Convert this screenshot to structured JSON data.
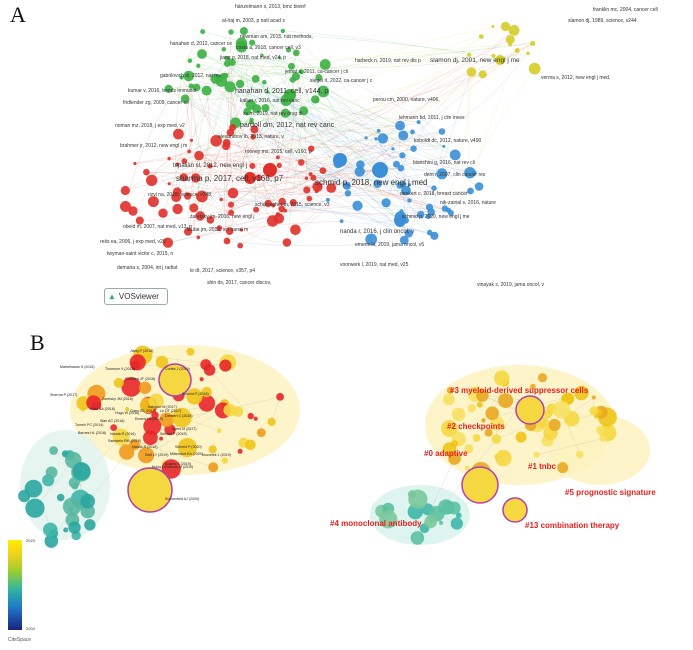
{
  "panels": {
    "a_label": "A",
    "b_label": "B"
  },
  "vosviewer_logo": {
    "text": "VOSviewer",
    "icon": "vosviewer-logo-icon"
  },
  "colors": {
    "red": "#e0302a",
    "green": "#3cb043",
    "blue": "#3a8fd6",
    "yellow": "#d6cc2a",
    "cluster_label": "#e4201e",
    "teal": "#3fb6a8"
  },
  "network_a": {
    "labels": [
      {
        "text": "hänzelmann s, 2013, bmc bioinf",
        "color": "green"
      },
      {
        "text": "al-haj m, 2003, p natl acad s",
        "color": "green"
      },
      {
        "text": "newman am, 2015, nat methods,",
        "color": "green"
      },
      {
        "text": "hanahan d, 2012, cancer ce",
        "color": "green"
      },
      {
        "text": "costa a, 2018, cancer cell, v3",
        "color": "green"
      },
      {
        "text": "jiang p, 2018, nat med, v24, p",
        "color": "green"
      },
      {
        "text": "jemal a, 2011, ca-cancer j cli",
        "color": "green"
      },
      {
        "text": "gabrilovich di, 2012, nat rev",
        "color": "green"
      },
      {
        "text": "siegel rl, 2022, ca-cancer j c",
        "color": "green"
      },
      {
        "text": "kumar v, 2016, trends immunol",
        "color": "green"
      },
      {
        "text": "fridlender zg, 2009, cancer ce",
        "color": "green"
      },
      {
        "text": "hanahan d, 2011, cell, v144, p",
        "color": "green"
      },
      {
        "text": "kalluri r, 2016, nat rev canc",
        "color": "green"
      },
      {
        "text": "xu m, 2019, nat rev drug di",
        "color": "green"
      },
      {
        "text": "noman mz, 2018, j exp med, v2",
        "color": "green"
      },
      {
        "text": "pardoll dm, 2012, nat rev canc",
        "color": "red"
      },
      {
        "text": "brahmer jr, 2012, new engl j m",
        "color": "red"
      },
      {
        "text": "alexandrov lb, 2013, nature, v",
        "color": "red"
      },
      {
        "text": "topalian sl, 2012, new engl j",
        "color": "red"
      },
      {
        "text": "rooney ms, 2015, cell, v160, p",
        "color": "red"
      },
      {
        "text": "sharma p, 2017, cell, v168, p7",
        "color": "red"
      },
      {
        "text": "rizvi na, 2015, science, v348,",
        "color": "red"
      },
      {
        "text": "schumacher tn, 2015, science, v3",
        "color": "red"
      },
      {
        "text": "obeid m, 2007, nat med, v13, p",
        "color": "red"
      },
      {
        "text": "zaretsky jm, 2016, new engl j",
        "color": "red"
      },
      {
        "text": "reits ea, 2006, j exp med, v20",
        "color": "red"
      },
      {
        "text": "twyman-saint victor c, 2015, n",
        "color": "red"
      },
      {
        "text": "taube jm, 2012, sci transl m",
        "color": "red"
      },
      {
        "text": "demaria s, 2004, int j radiat",
        "color": "red"
      },
      {
        "text": "le dt, 2017, science, v357, p4",
        "color": "red"
      },
      {
        "text": "shin ds, 2017, cancer discov,",
        "color": "red"
      },
      {
        "text": "franklin mc, 2004, cancer cell",
        "color": "yellow"
      },
      {
        "text": "harbeck n, 2019, nat rev dis p",
        "color": "yellow"
      },
      {
        "text": "slamon dj, 1989, science, v244",
        "color": "yellow"
      },
      {
        "text": "slamon dj, 2001, new engl j me",
        "color": "yellow"
      },
      {
        "text": "verma s, 2012, new engl j med,",
        "color": "yellow"
      },
      {
        "text": "perou cm, 2000, nature, v406,",
        "color": "blue"
      },
      {
        "text": "lehmann bd, 2011, j clin inves",
        "color": "blue"
      },
      {
        "text": "koboldt dc, 2012, nature, v490",
        "color": "blue"
      },
      {
        "text": "bianchini g, 2016, nat rev cli",
        "color": "blue"
      },
      {
        "text": "dent r, 2007, clin cancer res",
        "color": "blue"
      },
      {
        "text": "schmid p, 2018, new engl j med",
        "color": "blue"
      },
      {
        "text": "denkert c, 2018, breast cancer",
        "color": "blue"
      },
      {
        "text": "nik-zainal s, 2016, nature",
        "color": "blue"
      },
      {
        "text": "schmid p, 2020, new engl j me",
        "color": "blue"
      },
      {
        "text": "nanda r, 2016, j clin oncol, v",
        "color": "blue"
      },
      {
        "text": "emens la, 2019, jama oncol, v5",
        "color": "blue"
      },
      {
        "text": "voorwerk l, 2019, nat med, v25",
        "color": "blue"
      },
      {
        "text": "vinayak s, 2019, jama oncol, v",
        "color": "blue"
      }
    ]
  },
  "network_b": {
    "cluster_labels": [
      {
        "text": "#3 myeloid-derived suppressor cells"
      },
      {
        "text": "#2 checkpoints"
      },
      {
        "text": "#0 adaptive"
      },
      {
        "text": "#1 tnbc"
      },
      {
        "text": "#5 prognostic signature"
      },
      {
        "text": "#4 monoclonal antibody"
      },
      {
        "text": "#13 combination therapy"
      }
    ],
    "node_labels": [
      "Jiang P (2018)",
      "Martelhasan S (2018)",
      "Thomson V (2018)",
      "Gorchea JF (2018)",
      "Cortés J (2019)",
      "Zaretsky JM (2016)",
      "Schmid P (2018)",
      "Rizvi NA (2018)",
      "Chen DS (2017)",
      "Denkert C (2018)",
      "Sharma P (2017)",
      "Kaboom M (2017)",
      "Le DT (2017)",
      "Emens LA (2019)",
      "Nanda R (2016)",
      "Adams S (2019)",
      "Schmid P (2020)",
      "Mittendorf EA (2020)",
      "Vouvelek L (2019)",
      "Dixit LY (2019)",
      "Kulos Charbone M (2019)",
      "Schoenfeld AJ (2020)",
      "Wan AC (2018)",
      "Schmid P (2019)",
      "Nanda R (2018)",
      "Tumeh PC (2014)",
      "Barnes HL (2016)",
      "Hugo W (2016)",
      "Samstein RM (2019)",
      "Ayers M (2017)"
    ]
  },
  "legend": {
    "top": "2023",
    "bottom": "2004"
  },
  "citespace_logo": {
    "text": "CiteSpace"
  }
}
